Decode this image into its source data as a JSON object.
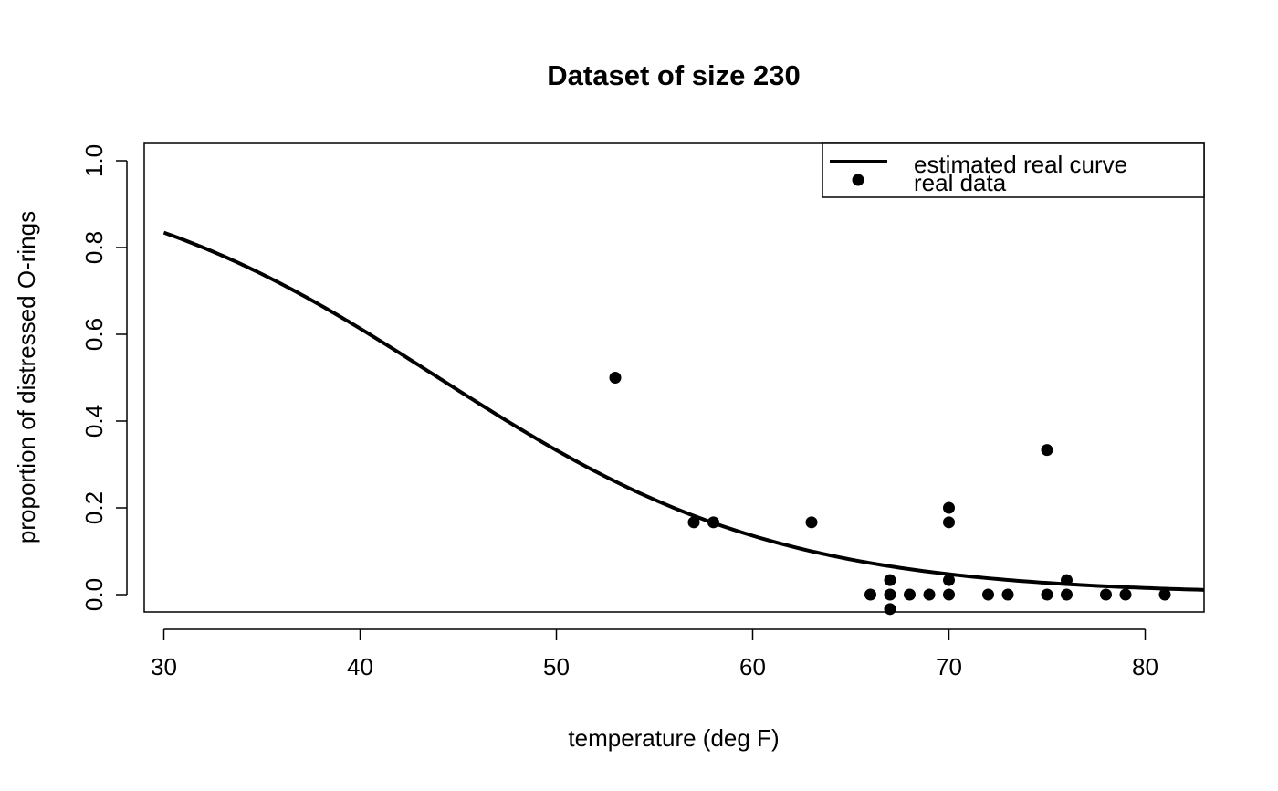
{
  "chart_data": {
    "type": "scatter",
    "title": "Dataset of size 230",
    "xlabel": "temperature (deg F)",
    "ylabel": "proportion of distressed O-rings",
    "xlim": [
      29,
      83
    ],
    "ylim": [
      -0.04,
      1.04
    ],
    "x_ticks": [
      30,
      40,
      50,
      60,
      70,
      80
    ],
    "y_ticks": [
      0.0,
      0.2,
      0.4,
      0.6,
      0.8,
      1.0
    ],
    "x_tick_labels": [
      "30",
      "40",
      "50",
      "60",
      "70",
      "80"
    ],
    "y_tick_labels": [
      "0.0",
      "0.2",
      "0.4",
      "0.6",
      "0.8",
      "1.0"
    ],
    "grid": false,
    "legend_position": "top-right",
    "series": [
      {
        "name": "estimated real curve",
        "kind": "line",
        "color": "#000000",
        "curve": {
          "form": "logistic",
          "intercept": 5.085,
          "slope": -0.1156
        },
        "x_range": [
          30,
          83
        ]
      },
      {
        "name": "real data",
        "kind": "points",
        "color": "#000000",
        "x": [
          53,
          57,
          58,
          63,
          66,
          67,
          67,
          67,
          68,
          69,
          70,
          70,
          70,
          70,
          72,
          73,
          75,
          75,
          76,
          76,
          78,
          79,
          81
        ],
        "y": [
          0.5,
          0.1667,
          0.1667,
          0.1667,
          0.0,
          0.0333,
          0.0,
          -0.0333,
          0.0,
          0.0,
          0.2,
          0.1667,
          0.0333,
          0.0,
          0.0,
          0.0,
          0.3333,
          0.0,
          0.0333,
          0.0,
          0.0,
          0.0,
          0.0
        ]
      }
    ]
  }
}
